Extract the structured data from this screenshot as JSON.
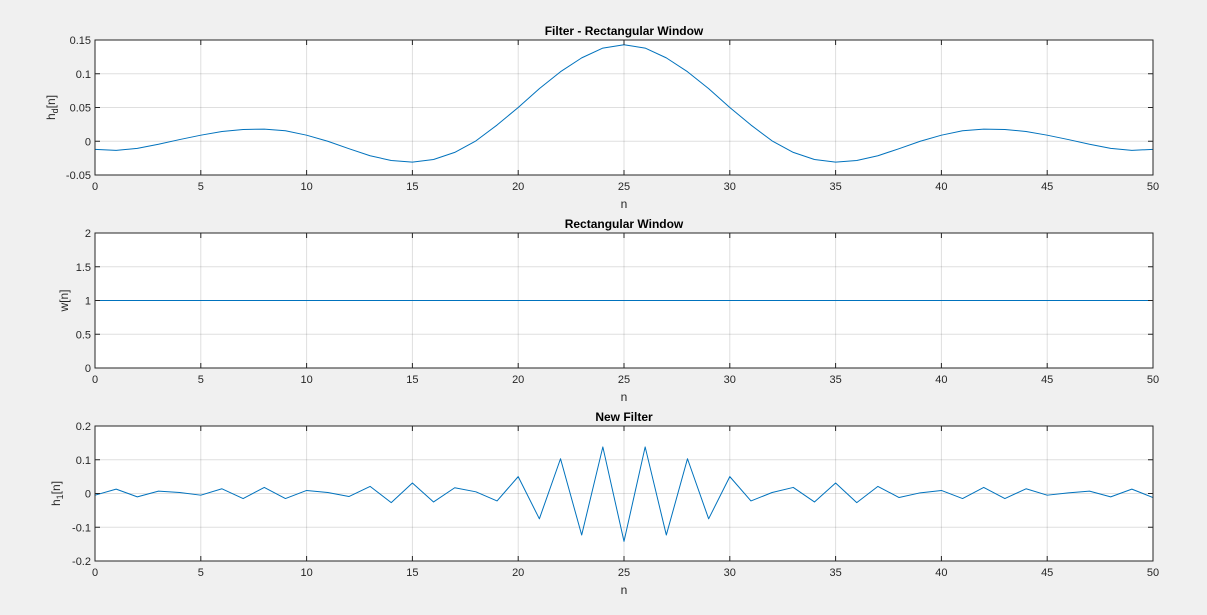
{
  "colors": {
    "background": "#f0f0f0",
    "plot_background": "#ffffff",
    "series": "#0072bd",
    "axis": "#262626"
  },
  "chart_data": [
    {
      "type": "line",
      "title": "Filter - Rectangular Window",
      "xlabel": "n",
      "ylabel": "h_d[n]",
      "ylabel_main": "h",
      "ylabel_sub": "d",
      "ylabel_tail": "[n]",
      "xlim": [
        0,
        50
      ],
      "ylim": [
        -0.05,
        0.15
      ],
      "grid": true,
      "xticks": [
        0,
        5,
        10,
        15,
        20,
        25,
        30,
        35,
        40,
        45,
        50
      ],
      "xtick_labels": [
        "0",
        "5",
        "10",
        "15",
        "20",
        "25",
        "30",
        "35",
        "40",
        "45",
        "50"
      ],
      "yticks": [
        -0.05,
        0,
        0.05,
        0.1,
        0.15
      ],
      "ytick_labels": [
        "-0.05",
        "0",
        "0.05",
        "0.1",
        "0.15"
      ],
      "x": [
        0,
        1,
        2,
        3,
        4,
        5,
        6,
        7,
        8,
        9,
        10,
        11,
        12,
        13,
        14,
        15,
        16,
        17,
        18,
        19,
        20,
        21,
        22,
        23,
        24,
        25,
        26,
        27,
        28,
        29,
        30,
        31,
        32,
        33,
        34,
        35,
        36,
        37,
        38,
        39,
        40,
        41,
        42,
        43,
        44,
        45,
        46,
        47,
        48,
        49,
        50
      ],
      "series": [
        {
          "name": "h_d[n]",
          "values": [
            -0.012,
            -0.0135,
            -0.0105,
            -0.0045,
            0.0025,
            0.009,
            0.0145,
            0.0175,
            0.018,
            0.0155,
            0.009,
            0.0,
            -0.011,
            -0.0215,
            -0.0285,
            -0.031,
            -0.027,
            -0.0165,
            0.0005,
            0.024,
            0.05,
            0.078,
            0.103,
            0.1235,
            0.138,
            0.143,
            0.138,
            0.1235,
            0.103,
            0.078,
            0.05,
            0.024,
            0.0005,
            -0.0165,
            -0.027,
            -0.031,
            -0.0285,
            -0.0215,
            -0.011,
            0.0,
            0.009,
            0.0155,
            0.018,
            0.0175,
            0.0145,
            0.009,
            0.0025,
            -0.0045,
            -0.0105,
            -0.0135,
            -0.012
          ]
        }
      ]
    },
    {
      "type": "line",
      "title": "Rectangular Window",
      "xlabel": "n",
      "ylabel": "w[n]",
      "ylabel_main": "w[n]",
      "ylabel_sub": "",
      "ylabel_tail": "",
      "xlim": [
        0,
        50
      ],
      "ylim": [
        0,
        2
      ],
      "grid": true,
      "xticks": [
        0,
        5,
        10,
        15,
        20,
        25,
        30,
        35,
        40,
        45,
        50
      ],
      "xtick_labels": [
        "0",
        "5",
        "10",
        "15",
        "20",
        "25",
        "30",
        "35",
        "40",
        "45",
        "50"
      ],
      "yticks": [
        0,
        0.5,
        1,
        1.5,
        2
      ],
      "ytick_labels": [
        "0",
        "0.5",
        "1",
        "1.5",
        "2"
      ],
      "x": [
        0,
        50
      ],
      "series": [
        {
          "name": "w[n]",
          "values": [
            1,
            1
          ]
        }
      ]
    },
    {
      "type": "line",
      "title": "New Filter",
      "xlabel": "n",
      "ylabel": "h_1[n]",
      "ylabel_main": "h",
      "ylabel_sub": "1",
      "ylabel_tail": "[n]",
      "xlim": [
        0,
        50
      ],
      "ylim": [
        -0.2,
        0.2
      ],
      "grid": true,
      "xticks": [
        0,
        5,
        10,
        15,
        20,
        25,
        30,
        35,
        40,
        45,
        50
      ],
      "xtick_labels": [
        "0",
        "5",
        "10",
        "15",
        "20",
        "25",
        "30",
        "35",
        "40",
        "45",
        "50"
      ],
      "yticks": [
        -0.2,
        -0.1,
        0,
        0.1,
        0.2
      ],
      "ytick_labels": [
        "-0.2",
        "-0.1",
        "0",
        "0.1",
        "0.2"
      ],
      "x": [
        0,
        1,
        2,
        3,
        4,
        5,
        6,
        7,
        8,
        9,
        10,
        11,
        12,
        13,
        14,
        15,
        16,
        17,
        18,
        19,
        20,
        21,
        22,
        23,
        24,
        25,
        26,
        27,
        28,
        29,
        30,
        31,
        32,
        33,
        34,
        35,
        36,
        37,
        38,
        39,
        40,
        41,
        42,
        43,
        44,
        45,
        46,
        47,
        48,
        49,
        50
      ],
      "series": [
        {
          "name": "h_1[n]",
          "values": [
            -0.005,
            0.013,
            -0.01,
            0.007,
            0.003,
            -0.005,
            0.014,
            -0.015,
            0.018,
            -0.015,
            0.009,
            0.003,
            -0.009,
            0.021,
            -0.027,
            0.031,
            -0.025,
            0.017,
            0.005,
            -0.022,
            0.05,
            -0.075,
            0.103,
            -0.123,
            0.138,
            -0.142,
            0.138,
            -0.123,
            0.103,
            -0.075,
            0.05,
            -0.022,
            0.003,
            0.018,
            -0.025,
            0.031,
            -0.027,
            0.021,
            -0.012,
            0.002,
            0.009,
            -0.015,
            0.018,
            -0.015,
            0.014,
            -0.005,
            0.002,
            0.007,
            -0.01,
            0.013,
            -0.012
          ]
        }
      ]
    }
  ]
}
